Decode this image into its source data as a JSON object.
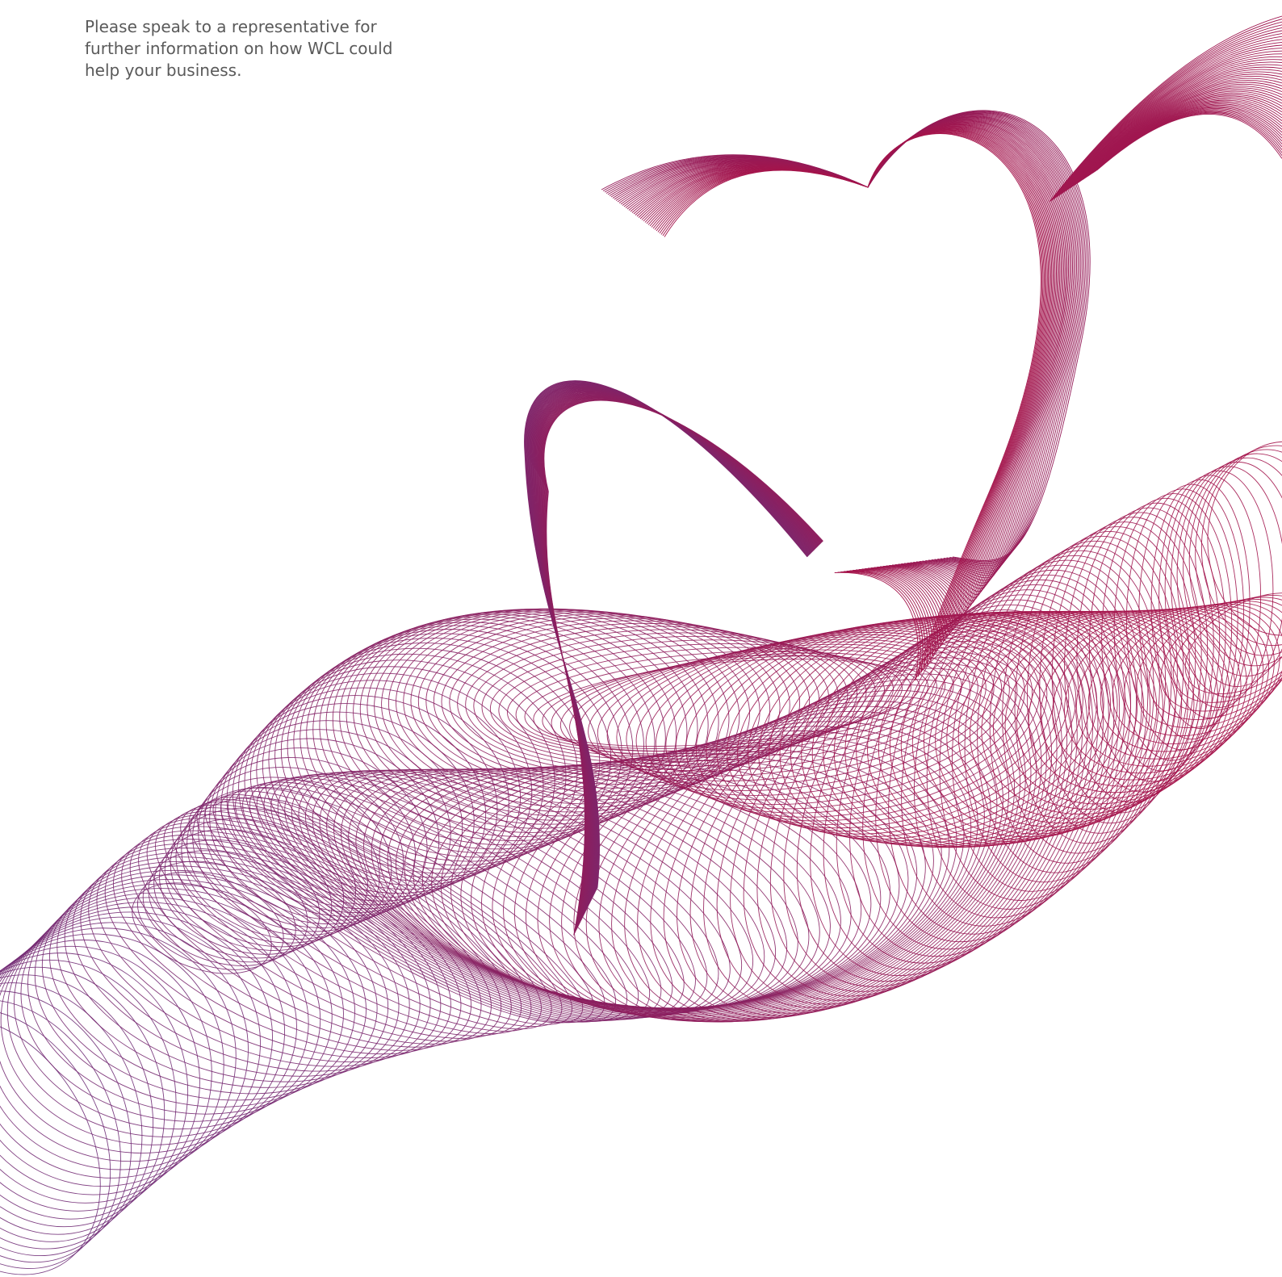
{
  "body": {
    "lines": [
      "Please speak to a representative for",
      "further information on how WCL could",
      "help your business."
    ]
  }
}
